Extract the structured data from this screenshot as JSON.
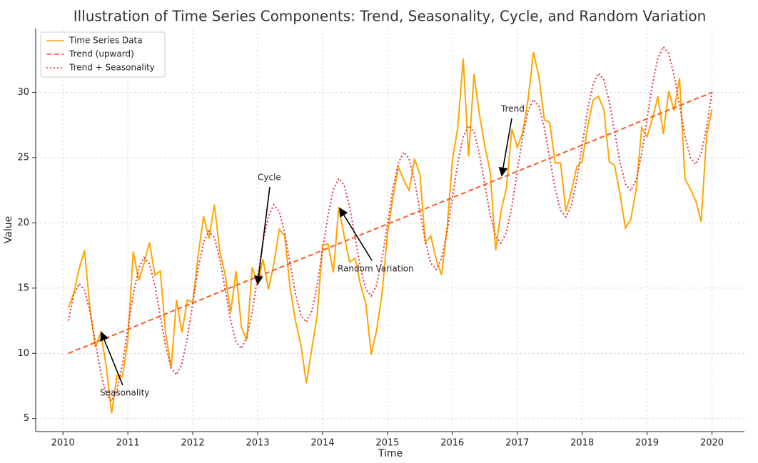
{
  "chart_data": {
    "type": "line",
    "title": "Illustration of Time Series Components: Trend, Seasonality, Cycle, and Random Variation",
    "x_label": "Time",
    "y_label": "Value",
    "x": [
      2010.083,
      2010.167,
      2010.25,
      2010.333,
      2010.417,
      2010.5,
      2010.583,
      2010.667,
      2010.75,
      2010.833,
      2010.917,
      2011,
      2011.083,
      2011.167,
      2011.25,
      2011.333,
      2011.417,
      2011.5,
      2011.583,
      2011.667,
      2011.75,
      2011.833,
      2011.917,
      2012,
      2012.083,
      2012.167,
      2012.25,
      2012.333,
      2012.417,
      2012.5,
      2012.583,
      2012.667,
      2012.75,
      2012.833,
      2012.917,
      2013,
      2013.083,
      2013.167,
      2013.25,
      2013.333,
      2013.417,
      2013.5,
      2013.583,
      2013.667,
      2013.75,
      2013.833,
      2013.917,
      2014,
      2014.083,
      2014.167,
      2014.25,
      2014.333,
      2014.417,
      2014.5,
      2014.583,
      2014.667,
      2014.75,
      2014.833,
      2014.917,
      2015,
      2015.083,
      2015.167,
      2015.25,
      2015.333,
      2015.417,
      2015.5,
      2015.583,
      2015.667,
      2015.75,
      2015.833,
      2015.917,
      2016,
      2016.083,
      2016.167,
      2016.25,
      2016.333,
      2016.417,
      2016.5,
      2016.583,
      2016.667,
      2016.75,
      2016.833,
      2016.917,
      2017,
      2017.083,
      2017.167,
      2017.25,
      2017.333,
      2017.417,
      2017.5,
      2017.583,
      2017.667,
      2017.75,
      2017.833,
      2017.917,
      2018,
      2018.083,
      2018.167,
      2018.25,
      2018.333,
      2018.417,
      2018.5,
      2018.583,
      2018.667,
      2018.75,
      2018.833,
      2018.917,
      2019,
      2019.083,
      2019.167,
      2019.25,
      2019.333,
      2019.417,
      2019.5,
      2019.583,
      2019.667,
      2019.75,
      2019.833,
      2019.917,
      2020
    ],
    "series": [
      {
        "name": "Time Series Data",
        "color": "#FFA500",
        "linestyle": "solid",
        "values": [
          13.5,
          14.6,
          16.5,
          17.9,
          13.4,
          10.5,
          11.6,
          9.0,
          5.4,
          8.3,
          8.2,
          11.0,
          17.8,
          15.6,
          16.9,
          18.5,
          16.0,
          16.3,
          11.5,
          8.9,
          14.1,
          11.6,
          14.1,
          13.9,
          17.5,
          20.5,
          18.8,
          21.4,
          17.8,
          16.0,
          13.1,
          16.3,
          12.0,
          11.0,
          16.6,
          15.3,
          17.2,
          14.9,
          16.9,
          19.5,
          19.0,
          15.0,
          12.5,
          10.6,
          7.7,
          10.3,
          12.9,
          18.3,
          18.4,
          16.2,
          21.2,
          19.0,
          17.0,
          17.3,
          15.3,
          13.8,
          9.9,
          11.8,
          14.6,
          19.2,
          21.9,
          24.3,
          23.3,
          22.5,
          24.9,
          23.7,
          18.5,
          19.0,
          17.2,
          16.0,
          19.5,
          24.8,
          27.3,
          32.6,
          25.1,
          31.4,
          28.3,
          25.9,
          23.9,
          17.9,
          20.9,
          22.7,
          27.2,
          25.8,
          26.9,
          29.5,
          33.1,
          31.2,
          27.9,
          27.7,
          24.6,
          24.6,
          20.9,
          22.4,
          24.3,
          24.7,
          27.3,
          29.4,
          29.7,
          28.7,
          24.7,
          24.4,
          22.2,
          19.6,
          20.3,
          22.6,
          27.3,
          26.6,
          28.0,
          29.7,
          26.8,
          30.1,
          28.6,
          31.1,
          23.4,
          22.6,
          21.7,
          20.1,
          26.7,
          28.7
        ]
      },
      {
        "name": "Trend (upward)",
        "color": "#FF5722",
        "linestyle": "dashed",
        "values": [
          10,
          10.17,
          10.34,
          10.5,
          10.67,
          10.84,
          11.01,
          11.18,
          11.34,
          11.51,
          11.68,
          11.85,
          12.02,
          12.18,
          12.35,
          12.52,
          12.69,
          12.86,
          13.03,
          13.19,
          13.36,
          13.53,
          13.7,
          13.87,
          14.03,
          14.2,
          14.37,
          14.54,
          14.71,
          14.87,
          15.04,
          15.21,
          15.38,
          15.55,
          15.71,
          15.88,
          16.05,
          16.22,
          16.39,
          16.55,
          16.72,
          16.89,
          17.06,
          17.23,
          17.39,
          17.56,
          17.73,
          17.9,
          18.07,
          18.24,
          18.4,
          18.57,
          18.74,
          18.91,
          19.08,
          19.24,
          19.41,
          19.58,
          19.75,
          19.92,
          20.08,
          20.25,
          20.42,
          20.59,
          20.76,
          20.92,
          21.09,
          21.26,
          21.43,
          21.6,
          21.76,
          21.93,
          22.1,
          22.27,
          22.44,
          22.61,
          22.77,
          22.94,
          23.11,
          23.28,
          23.45,
          23.61,
          23.78,
          23.95,
          24.12,
          24.29,
          24.45,
          24.62,
          24.79,
          24.96,
          25.13,
          25.29,
          25.46,
          25.63,
          25.8,
          25.97,
          26.13,
          26.3,
          26.47,
          26.64,
          26.81,
          26.97,
          27.14,
          27.31,
          27.48,
          27.65,
          27.82,
          27.98,
          28.15,
          28.32,
          28.49,
          28.66,
          28.82,
          28.99,
          29.16,
          29.33,
          29.5,
          29.66,
          29.83,
          30
        ]
      },
      {
        "name": "Trend + Seasonality",
        "color": "#E8303F",
        "linestyle": "dotted",
        "values": [
          12.5,
          14.5,
          15.34,
          14.83,
          13.17,
          10.84,
          8.51,
          6.85,
          6.34,
          7.18,
          9.18,
          11.85,
          14.52,
          16.51,
          17.35,
          16.85,
          15.19,
          12.86,
          10.53,
          8.86,
          8.36,
          9.2,
          11.2,
          13.87,
          16.53,
          18.53,
          19.37,
          18.87,
          17.21,
          14.87,
          12.54,
          10.88,
          10.38,
          11.22,
          13.21,
          15.88,
          18.55,
          20.55,
          21.39,
          20.88,
          19.22,
          16.89,
          14.56,
          12.9,
          12.39,
          13.23,
          15.23,
          17.9,
          20.57,
          22.57,
          23.4,
          22.9,
          21.24,
          18.91,
          16.58,
          14.91,
          14.41,
          15.25,
          17.25,
          19.92,
          22.58,
          24.58,
          25.42,
          24.92,
          23.26,
          20.92,
          18.59,
          16.93,
          16.43,
          17.27,
          19.26,
          21.93,
          24.6,
          26.6,
          27.44,
          26.94,
          25.27,
          22.94,
          20.61,
          18.95,
          18.45,
          19.28,
          21.28,
          23.95,
          26.62,
          28.62,
          29.45,
          28.95,
          27.29,
          24.96,
          22.63,
          20.96,
          20.46,
          21.3,
          23.3,
          25.97,
          28.63,
          30.63,
          31.47,
          30.97,
          29.31,
          26.97,
          24.64,
          22.98,
          22.48,
          23.32,
          25.32,
          27.98,
          30.65,
          32.65,
          33.49,
          32.99,
          31.32,
          28.99,
          26.66,
          25.0,
          24.5,
          25.33,
          27.33,
          30.0
        ]
      }
    ],
    "xlim": [
      2009.58,
      2020.5
    ],
    "ylim": [
      4.0,
      34.9
    ],
    "xticks": [
      2010,
      2011,
      2012,
      2013,
      2014,
      2015,
      2016,
      2017,
      2018,
      2019,
      2020
    ],
    "yticks": [
      5,
      10,
      15,
      20,
      25,
      30
    ],
    "grid": true,
    "legend": "upper left",
    "annotations": [
      "Seasonality",
      "Cycle",
      "Random Variation",
      "Trend"
    ]
  }
}
